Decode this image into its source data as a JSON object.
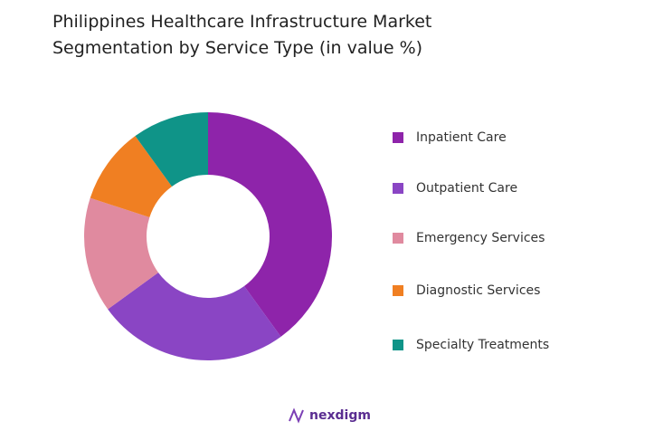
{
  "chart_data": {
    "type": "donut",
    "title": "Philippines Healthcare Infrastructure Market Segmentation by Service Type (in value %)",
    "categories": [
      "Inpatient Care",
      "Outpatient Care",
      "Emergency Services",
      "Diagnostic Services",
      "Specialty Treatments"
    ],
    "values": [
      40,
      25,
      15,
      10,
      10
    ],
    "colors": [
      "#8e24aa",
      "#8a45c4",
      "#e08a9f",
      "#f07f22",
      "#0f9488"
    ],
    "legend": "right"
  },
  "brand": "nexdigm"
}
